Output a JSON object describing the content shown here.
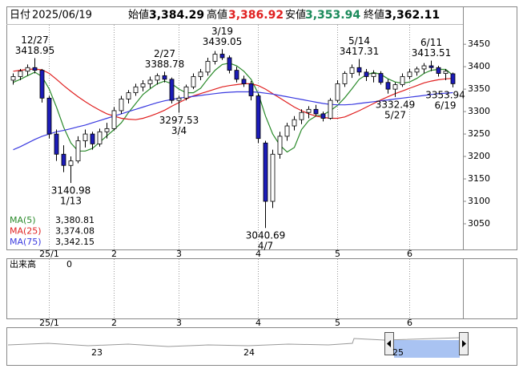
{
  "chart_data": {
    "type": "candlestick",
    "header": {
      "date_label": "日付",
      "date": "2025/06/19",
      "open_label": "始値",
      "open": "3,384.29",
      "high_label": "高値",
      "high": "3,386.92",
      "low_label": "安値",
      "low": "3,353.94",
      "close_label": "終値",
      "close": "3,362.11"
    },
    "categories": [
      null,
      null,
      null,
      null,
      null,
      "25/1",
      null,
      null,
      null,
      null,
      null,
      null,
      null,
      null,
      "2",
      null,
      null,
      null,
      null,
      null,
      null,
      null,
      null,
      "3",
      null,
      null,
      null,
      null,
      null,
      null,
      null,
      null,
      null,
      null,
      "4",
      null,
      null,
      null,
      null,
      null,
      null,
      null,
      null,
      null,
      null,
      "5",
      null,
      null,
      null,
      null,
      null,
      null,
      null,
      null,
      null,
      "6",
      null,
      null,
      null,
      null,
      null,
      null
    ],
    "open": [
      3370,
      3378,
      3390,
      3398,
      3392,
      3330,
      3250,
      3205,
      3180,
      3190,
      3235,
      3250,
      3228,
      3255,
      3262,
      3302,
      3328,
      3342,
      3355,
      3362,
      3370,
      3380,
      3372,
      3325,
      3330,
      3355,
      3378,
      3388,
      3412,
      3428,
      3420,
      3392,
      3372,
      3362,
      3335,
      3230,
      3100,
      3205,
      3245,
      3268,
      3282,
      3298,
      3305,
      3295,
      3285,
      3325,
      3362,
      3385,
      3398,
      3388,
      3378,
      3385,
      3365,
      3350,
      3360,
      3378,
      3388,
      3395,
      3402,
      3398,
      3385,
      3384.29
    ],
    "high": [
      3385,
      3395,
      3405,
      3418.95,
      3395,
      3335,
      3260,
      3225,
      3200,
      3245,
      3260,
      3255,
      3262,
      3275,
      3310,
      3335,
      3348,
      3362,
      3370,
      3378,
      3385,
      3388.78,
      3376,
      3335,
      3360,
      3385,
      3395,
      3420,
      3435,
      3439.05,
      3425,
      3400,
      3380,
      3368,
      3340,
      3235,
      3215,
      3255,
      3275,
      3290,
      3305,
      3312,
      3315,
      3300,
      3330,
      3370,
      3390,
      3405,
      3417.31,
      3395,
      3392,
      3390,
      3372,
      3365,
      3385,
      3395,
      3400,
      3408,
      3413.51,
      3402,
      3395,
      3386.92
    ],
    "low": [
      3360,
      3370,
      3380,
      3385,
      3320,
      3240,
      3190,
      3165,
      3140.98,
      3185,
      3220,
      3215,
      3222,
      3240,
      3258,
      3295,
      3318,
      3335,
      3345,
      3352,
      3360,
      3365,
      3318,
      3297.53,
      3325,
      3350,
      3370,
      3380,
      3405,
      3415,
      3385,
      3365,
      3355,
      3325,
      3230,
      3040.69,
      3085,
      3195,
      3235,
      3258,
      3272,
      3285,
      3290,
      3278,
      3282,
      3320,
      3355,
      3375,
      3380,
      3368,
      3365,
      3360,
      3340,
      3332.49,
      3355,
      3372,
      3380,
      3385,
      3390,
      3378,
      3370,
      3353.94
    ],
    "close": [
      3378,
      3390,
      3398,
      3392,
      3330,
      3250,
      3205,
      3180,
      3190,
      3235,
      3250,
      3228,
      3255,
      3262,
      3302,
      3328,
      3342,
      3355,
      3362,
      3370,
      3380,
      3372,
      3325,
      3330,
      3355,
      3378,
      3388,
      3412,
      3428,
      3420,
      3392,
      3372,
      3362,
      3335,
      3240,
      3100,
      3205,
      3245,
      3268,
      3282,
      3298,
      3305,
      3295,
      3285,
      3325,
      3362,
      3385,
      3398,
      3388,
      3378,
      3385,
      3365,
      3350,
      3360,
      3378,
      3388,
      3395,
      3402,
      3398,
      3385,
      3390,
      3362.11
    ],
    "up_color": "#ffffff",
    "down_color": "#1c1cb8",
    "series": [
      {
        "name": "MA(5)",
        "color": "#2a8a2a",
        "legend_value": "3,380.81",
        "values": [
          3365,
          3372,
          3380,
          3388,
          3378,
          3350,
          3310,
          3265,
          3230,
          3212,
          3212,
          3218,
          3232,
          3246,
          3260,
          3275,
          3298,
          3318,
          3338,
          3351,
          3362,
          3368,
          3362,
          3350,
          3342,
          3342,
          3352,
          3373,
          3392,
          3405,
          3408,
          3402,
          3390,
          3372,
          3340,
          3290,
          3250,
          3225,
          3210,
          3220,
          3260,
          3280,
          3290,
          3293,
          3302,
          3314,
          3331,
          3351,
          3372,
          3382,
          3387,
          3383,
          3373,
          3366,
          3363,
          3366,
          3374,
          3385,
          3392,
          3394,
          3394,
          3380.81
        ]
      },
      {
        "name": "MA(25)",
        "color": "#e02020",
        "legend_value": "3,374.08",
        "values": [
          3390,
          3392,
          3394,
          3395,
          3393,
          3385,
          3372,
          3358,
          3345,
          3333,
          3322,
          3312,
          3303,
          3295,
          3290,
          3285,
          3283,
          3282,
          3285,
          3290,
          3296,
          3303,
          3312,
          3320,
          3328,
          3335,
          3340,
          3345,
          3350,
          3355,
          3358,
          3360,
          3362,
          3362,
          3358,
          3350,
          3340,
          3330,
          3320,
          3310,
          3302,
          3295,
          3290,
          3287,
          3285,
          3285,
          3288,
          3295,
          3302,
          3310,
          3318,
          3326,
          3333,
          3340,
          3346,
          3352,
          3358,
          3364,
          3368,
          3371,
          3373,
          3374.08
        ]
      },
      {
        "name": "MA(75)",
        "color": "#3a3ae0",
        "legend_value": "3,342.15",
        "values": [
          3215,
          3222,
          3230,
          3238,
          3245,
          3250,
          3255,
          3258,
          3262,
          3266,
          3270,
          3275,
          3280,
          3285,
          3290,
          3295,
          3300,
          3305,
          3310,
          3315,
          3320,
          3324,
          3327,
          3330,
          3332,
          3334,
          3336,
          3338,
          3340,
          3342,
          3343,
          3344,
          3344,
          3344,
          3343,
          3341,
          3339,
          3336,
          3333,
          3330,
          3327,
          3324,
          3321,
          3318,
          3316,
          3315,
          3315,
          3316,
          3318,
          3320,
          3322,
          3324,
          3326,
          3328,
          3330,
          3332,
          3334,
          3336,
          3338,
          3340,
          3341,
          3342.15
        ]
      }
    ],
    "annotations": [
      {
        "date": "12/27",
        "value": 3418.95
      },
      {
        "date": "1/13",
        "value": 3140.98
      },
      {
        "date": "2/27",
        "value": 3388.78
      },
      {
        "date": "3/4",
        "value": 3297.53
      },
      {
        "date": "3/19",
        "value": 3439.05
      },
      {
        "date": "4/7",
        "value": 3040.69
      },
      {
        "date": "5/14",
        "value": 3417.31
      },
      {
        "date": "5/27",
        "value": 3332.49
      },
      {
        "date": "6/11",
        "value": 3413.51
      },
      {
        "date": "6/19",
        "value": 3353.94
      }
    ],
    "ylim": [
      2991,
      3495
    ],
    "yticks": [
      3050,
      3100,
      3150,
      3200,
      3250,
      3300,
      3350,
      3400,
      3450
    ],
    "volume": {
      "title": "出来高",
      "value": 0
    },
    "navigator": {
      "labels": [
        "23",
        "24",
        "25"
      ]
    }
  }
}
